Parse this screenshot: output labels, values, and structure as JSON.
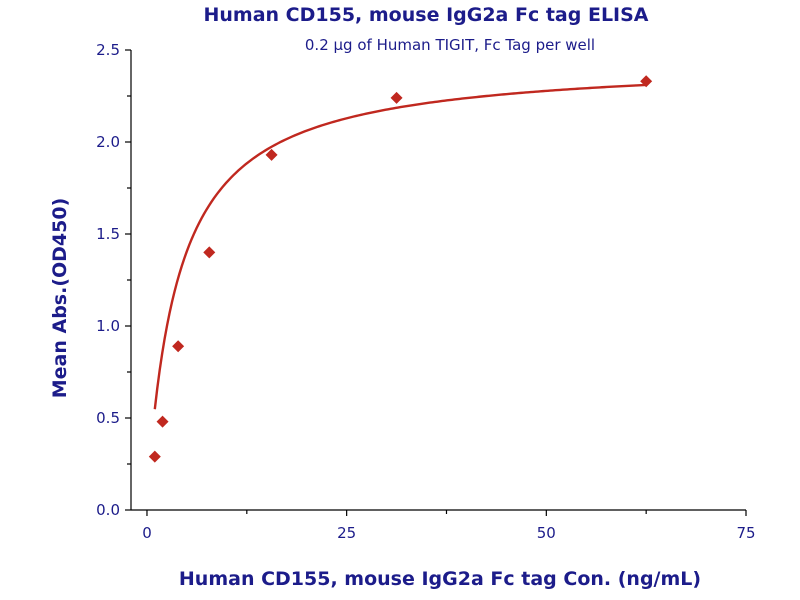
{
  "chart_data": {
    "type": "scatter",
    "title": "Human CD155, mouse IgG2a Fc tag ELISA",
    "subtitle": "0.2 µg of Human TIGIT, Fc Tag per well",
    "xlabel": "Human CD155, mouse IgG2a Fc tag Con. (ng/mL)",
    "ylabel": "Mean Abs.(OD450)",
    "xlim": [
      -2,
      75
    ],
    "ylim": [
      0,
      2.5
    ],
    "x_ticks": [
      "0",
      "25",
      "50",
      "75"
    ],
    "y_ticks": [
      "0.0",
      "0.5",
      "1.0",
      "1.5",
      "2.0",
      "2.5"
    ],
    "grid": false,
    "colors": {
      "text": "#1c1c8a",
      "series": "#c0281f",
      "axis": "#000000"
    },
    "series": [
      {
        "x": [
          0.98,
          1.95,
          3.9,
          7.8,
          15.6,
          31.25,
          62.5
        ],
        "y": [
          0.29,
          0.48,
          0.89,
          1.4,
          1.93,
          2.24,
          2.33
        ],
        "marker": "diamond",
        "fit": {
          "type": "hyperbolic",
          "bmax": 2.45,
          "kd": 3.9,
          "bottom": 0.07
        }
      }
    ]
  }
}
